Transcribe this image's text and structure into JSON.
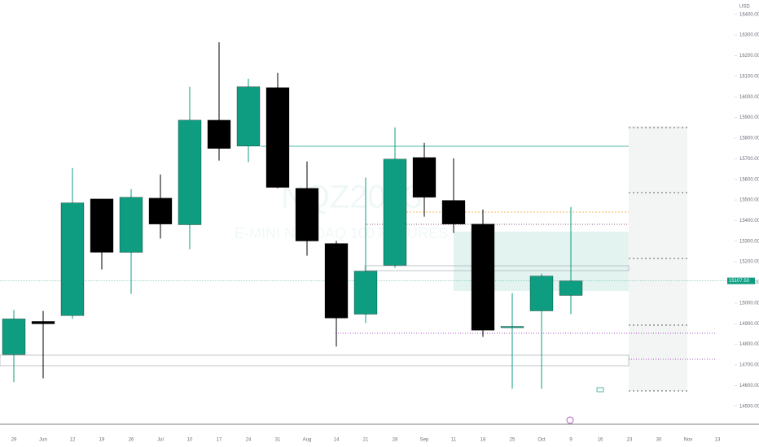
{
  "chart_data": {
    "type": "candlestick",
    "watermark": "NQZ2023",
    "watermark_subtitle": "E-MINI NASDAQ 100 FUTURES",
    "currency": "USD",
    "categories": [
      "29",
      "Jun",
      "12",
      "19",
      "26",
      "Jul",
      "10",
      "17",
      "24",
      "31",
      "Aug",
      "14",
      "21",
      "28",
      "Sep",
      "11",
      "18",
      "25",
      "Oct",
      "9",
      "16",
      "23",
      "30",
      "Nov",
      "13"
    ],
    "open": [
      14750,
      14911,
      14939,
      15505,
      15246,
      15509,
      15380,
      15887,
      15761,
      16045,
      15557,
      15289,
      14946,
      15183,
      15706,
      15498,
      15383,
      14880,
      14962,
      15037,
      null,
      null,
      null,
      null,
      null
    ],
    "high": [
      14966,
      14962,
      15655,
      15505,
      15553,
      15624,
      16049,
      16265,
      16088,
      16116,
      15687,
      15301,
      15608,
      15852,
      15777,
      15702,
      15454,
      15049,
      15143,
      15466,
      null,
      null,
      null,
      null,
      null
    ],
    "low": [
      14616,
      14635,
      14923,
      15163,
      15045,
      15313,
      15261,
      15691,
      15683,
      15557,
      15230,
      14789,
      14903,
      15171,
      15419,
      15340,
      14836,
      14584,
      14584,
      14946,
      null,
      null,
      null,
      null,
      null
    ],
    "close": [
      14923,
      14899,
      15486,
      15246,
      15513,
      15383,
      15887,
      15750,
      16049,
      15561,
      15301,
      14927,
      15155,
      15698,
      15513,
      15383,
      14868,
      14887,
      15131,
      15107.5,
      null,
      null,
      null,
      null,
      null
    ],
    "up_color": "#0e9d80",
    "down_color": "#000000",
    "last_price": {
      "value": 15107.5,
      "label": "15107.50"
    },
    "ylim": [
      14420,
      16470
    ],
    "yticks": [
      {
        "value": 14500,
        "label": "14500.00"
      },
      {
        "value": 14600,
        "label": "14600.00"
      },
      {
        "value": 14700,
        "label": "14700.00"
      },
      {
        "value": 14800,
        "label": "14800.00"
      },
      {
        "value": 14900,
        "label": "14900.00"
      },
      {
        "value": 15000,
        "label": "15000.00"
      },
      {
        "value": 15100,
        "label": "15100.00"
      },
      {
        "value": 15200,
        "label": "15200.00"
      },
      {
        "value": 15300,
        "label": "15300.00"
      },
      {
        "value": 15400,
        "label": "15400.00"
      },
      {
        "value": 15500,
        "label": "15500.00"
      },
      {
        "value": 15600,
        "label": "15600.00"
      },
      {
        "value": 15700,
        "label": "15700.00"
      },
      {
        "value": 15800,
        "label": "15800.00"
      },
      {
        "value": 15900,
        "label": "15900.00"
      },
      {
        "value": 16000,
        "label": "16000.00"
      },
      {
        "value": 16100,
        "label": "16100.00"
      },
      {
        "value": 16200,
        "label": "16200.00"
      },
      {
        "value": 16300,
        "label": "16300.00"
      },
      {
        "value": 16400,
        "label": "16400.00"
      }
    ]
  }
}
